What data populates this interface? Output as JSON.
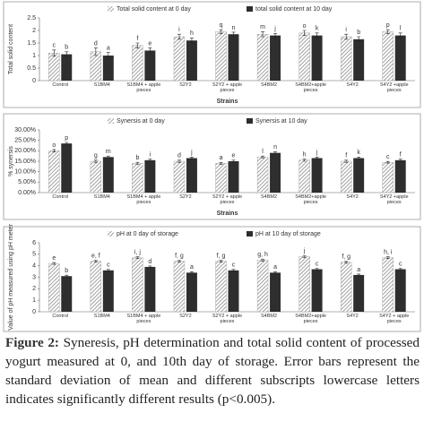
{
  "chart_data": [
    {
      "type": "bar",
      "y_label": "Total solid content",
      "x_label": "Strains",
      "categories": [
        "Control",
        "S1BM4",
        "S1BM4 + apple pieces",
        "S2Y2",
        "S2Y2 + apple pieces",
        "S4BM2",
        "S4BM2+apple pieces",
        "S4Y2",
        "S4Y2 +apple pieces"
      ],
      "series": [
        {
          "name": "Total solid content at 0 day",
          "color": "#8a8a8a",
          "hatch": true,
          "values": [
            1.1,
            1.15,
            1.4,
            1.75,
            1.95,
            1.85,
            1.9,
            1.75,
            1.95
          ],
          "errors": [
            0.12,
            0.15,
            0.1,
            0.1,
            0.08,
            0.1,
            0.1,
            0.1,
            0.08
          ],
          "labels": [
            "c",
            "d",
            "f",
            "i",
            "q",
            "m",
            "o",
            "i",
            "p"
          ]
        },
        {
          "name": "total solid content at 10 day",
          "color": "#2e2e2e",
          "values": [
            1.05,
            1.0,
            1.2,
            1.6,
            1.85,
            1.8,
            1.8,
            1.65,
            1.8
          ],
          "errors": [
            0.1,
            0.12,
            0.1,
            0.1,
            0.08,
            0.08,
            0.1,
            0.1,
            0.1
          ],
          "labels": [
            "b",
            "a",
            "e",
            "h",
            "n",
            "j",
            "k",
            "b",
            "l"
          ]
        }
      ],
      "ylim": [
        0,
        2.5
      ],
      "yticks": [
        0,
        0.5,
        1,
        1.5,
        2,
        2.5
      ],
      "grid": false
    },
    {
      "type": "bar",
      "y_label": "% synersis",
      "x_label": "Strains",
      "categories": [
        "Control",
        "S1BM4",
        "S1BM4 + apple pieces",
        "S2Y2",
        "S2Y2 + apple pieces",
        "S4BM2",
        "S4BM2+apple pieces",
        "S4Y2",
        "S4Y2 +apple pieces"
      ],
      "series": [
        {
          "name": "Synersis at 0 day",
          "color": "#8a8a8a",
          "hatch": true,
          "values": [
            20,
            15,
            14,
            15,
            14,
            17,
            15.5,
            15,
            14.5
          ],
          "errors": [
            0.6,
            0.5,
            0.5,
            0.5,
            0.4,
            0.5,
            0.5,
            0.5,
            0.4
          ],
          "labels": [
            "o",
            "g",
            "b",
            "d",
            "a",
            "l",
            "h",
            "f",
            "c"
          ]
        },
        {
          "name": "Synersis at 10 day",
          "color": "#2e2e2e",
          "values": [
            23.5,
            17,
            15.5,
            16.5,
            15,
            19,
            16.5,
            16.5,
            15.5
          ],
          "errors": [
            0.5,
            0.5,
            0.5,
            0.5,
            0.5,
            0.6,
            0.5,
            0.5,
            0.5
          ],
          "labels": [
            "p",
            "m",
            "i",
            "j",
            "e",
            "n",
            "j",
            "k",
            "f"
          ]
        }
      ],
      "ylim": [
        0,
        30
      ],
      "yticks": [
        {
          "value": 0,
          "label": "0.00%"
        },
        {
          "value": 5,
          "label": "5.00%"
        },
        {
          "value": 10,
          "label": "10.00%"
        },
        {
          "value": 15,
          "label": "15.00%"
        },
        {
          "value": 20,
          "label": "20.00%"
        },
        {
          "value": 25,
          "label": "25.00%"
        },
        {
          "value": 30,
          "label": "30.00%"
        }
      ],
      "grid": false
    },
    {
      "type": "bar",
      "y_label": "Value of pH measured using pH meter",
      "categories": [
        "Control",
        "S1BM4",
        "S1BM4 + apple pieces",
        "S2Y2",
        "S2Y2 + apple pieces",
        "S4BM2",
        "S4BM2+apple pieces",
        "S4Y2",
        "S4Y2 + apple pieces"
      ],
      "series": [
        {
          "name": "pH at 0 day of storage",
          "color": "#8a8a8a",
          "hatch": true,
          "values": [
            4.2,
            4.4,
            4.7,
            4.4,
            4.4,
            4.5,
            4.8,
            4.3,
            4.7
          ],
          "errors": [
            0.08,
            0.08,
            0.08,
            0.08,
            0.08,
            0.08,
            0.08,
            0.08,
            0.08
          ],
          "labels": [
            "e",
            "e, f",
            "i, j",
            "f, g",
            "f, g",
            "g, h",
            "j",
            "f, g",
            "h, i"
          ]
        },
        {
          "name": "pH at 10 day of storage",
          "color": "#2e2e2e",
          "values": [
            3.1,
            3.6,
            3.9,
            3.4,
            3.6,
            3.4,
            3.7,
            3.2,
            3.7
          ],
          "errors": [
            0.08,
            0.08,
            0.08,
            0.08,
            0.08,
            0.08,
            0.08,
            0.08,
            0.08
          ],
          "labels": [
            "b",
            "c",
            "d",
            "a",
            "c",
            "a",
            "c",
            "a",
            "c"
          ]
        }
      ],
      "ylim": [
        0,
        6
      ],
      "yticks": [
        0,
        1,
        2,
        3,
        4,
        5,
        6
      ],
      "grid": false
    }
  ],
  "caption": {
    "label": "Figure 2:",
    "text": "Syneresis, pH determination and total solid content of processed yogurt measured at 0, and 10th day of storage. Error bars represent the standard deviation of mean and different subscripts lowercase letters indicates significantly different results (p<0.005)."
  }
}
